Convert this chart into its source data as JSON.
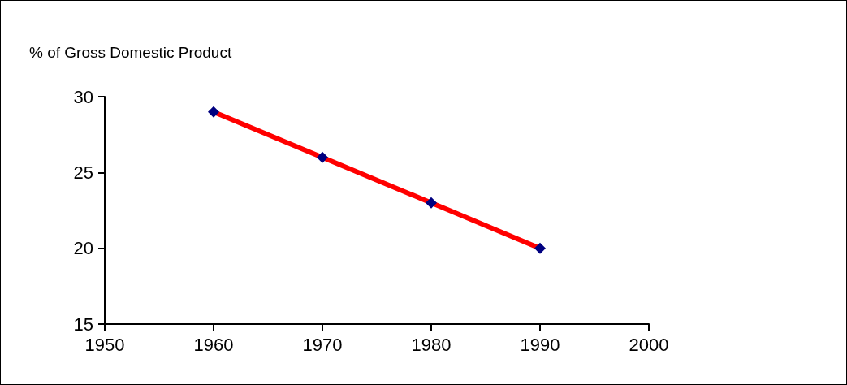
{
  "chart_data": {
    "type": "line",
    "ylabel": "% of Gross Domestic Product",
    "x": [
      1960,
      1970,
      1980,
      1990
    ],
    "series": [
      {
        "color": "#ff0000",
        "values": [
          29,
          26,
          23,
          20
        ]
      }
    ],
    "xlim": [
      1950,
      2000
    ],
    "xticks": [
      1950,
      1960,
      1970,
      1980,
      1990,
      2000
    ],
    "ylim": [
      15,
      30
    ],
    "yticks": [
      15,
      20,
      25,
      30
    ],
    "grid": false,
    "marker": "diamond",
    "line_style": "solid"
  }
}
